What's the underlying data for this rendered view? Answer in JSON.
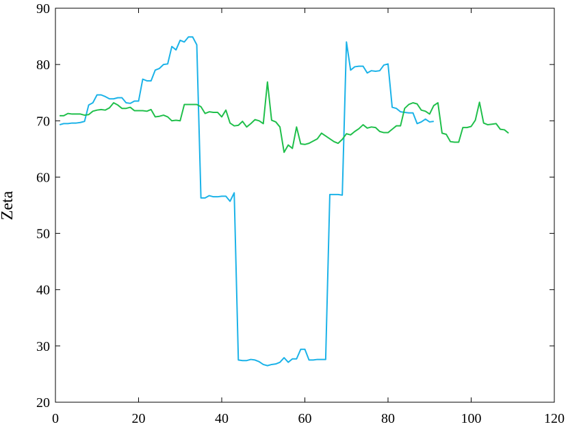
{
  "chart_data": {
    "type": "line",
    "y_label": "Zeta",
    "xlim": [
      0,
      120
    ],
    "xticks": [
      0,
      20,
      40,
      60,
      80,
      100,
      120
    ],
    "ylim": [
      20,
      90
    ],
    "yticks": [
      20,
      30,
      40,
      50,
      60,
      70,
      80,
      90
    ],
    "grid": false,
    "series": [
      {
        "color": "#1ab2e8",
        "x": [
          1,
          2,
          3,
          4,
          5,
          6,
          7,
          8,
          9,
          10,
          11,
          12,
          13,
          14,
          15,
          16,
          17,
          18,
          19,
          20,
          21,
          22,
          23,
          24,
          25,
          26,
          27,
          28,
          29,
          30,
          31,
          32,
          33,
          34,
          35,
          36,
          37,
          38,
          39,
          40,
          41,
          42,
          43,
          44,
          45,
          46,
          47,
          48,
          49,
          50,
          51,
          52,
          53,
          54,
          55,
          56,
          57,
          58,
          59,
          60,
          61,
          62,
          63,
          64,
          65,
          66,
          67,
          68,
          69,
          70,
          71,
          72,
          73,
          74,
          75,
          76,
          77,
          78,
          79,
          80,
          81,
          82,
          83,
          84,
          85,
          86,
          87,
          88,
          89,
          90,
          91
        ],
        "values": [
          69.3,
          69.5,
          69.5,
          69.6,
          69.6,
          69.7,
          69.9,
          72.8,
          73.2,
          74.6,
          74.6,
          74.3,
          73.9,
          73.9,
          74.1,
          74.1,
          73.2,
          73.1,
          73.5,
          73.5,
          77.4,
          77.1,
          77.1,
          79.0,
          79.3,
          80.0,
          80.1,
          83.2,
          82.6,
          84.3,
          84.0,
          84.9,
          84.9,
          83.5,
          56.3,
          56.3,
          56.7,
          56.5,
          56.5,
          56.6,
          56.6,
          55.7,
          57.2,
          27.5,
          27.4,
          27.4,
          27.6,
          27.5,
          27.2,
          26.7,
          26.5,
          26.7,
          26.8,
          27.1,
          27.9,
          27.1,
          27.7,
          27.7,
          29.4,
          29.4,
          27.5,
          27.5,
          27.6,
          27.6,
          27.6,
          56.9,
          56.9,
          56.9,
          56.8,
          84.0,
          79.0,
          79.6,
          79.7,
          79.7,
          78.5,
          78.9,
          78.8,
          78.9,
          79.9,
          80.1,
          72.4,
          72.2,
          71.6,
          71.5,
          71.4,
          71.4,
          69.5,
          69.8,
          70.3,
          69.8,
          69.9
        ]
      },
      {
        "color": "#1fbf4a",
        "x": [
          1,
          2,
          3,
          4,
          5,
          6,
          7,
          8,
          9,
          10,
          11,
          12,
          13,
          14,
          15,
          16,
          17,
          18,
          19,
          20,
          21,
          22,
          23,
          24,
          25,
          26,
          27,
          28,
          29,
          30,
          31,
          32,
          33,
          34,
          35,
          36,
          37,
          38,
          39,
          40,
          41,
          42,
          43,
          44,
          45,
          46,
          47,
          48,
          49,
          50,
          51,
          52,
          53,
          54,
          55,
          56,
          57,
          58,
          59,
          60,
          61,
          62,
          63,
          64,
          65,
          66,
          67,
          68,
          69,
          70,
          71,
          72,
          73,
          74,
          75,
          76,
          77,
          78,
          79,
          80,
          81,
          82,
          83,
          84,
          85,
          86,
          87,
          88,
          89,
          90,
          91,
          92,
          93,
          94,
          95,
          96,
          97,
          98,
          99,
          100,
          101,
          102,
          103,
          104,
          105,
          106,
          107,
          108,
          109
        ],
        "values": [
          70.9,
          70.9,
          71.3,
          71.2,
          71.2,
          71.2,
          71.0,
          71.1,
          71.7,
          71.9,
          72.0,
          71.9,
          72.3,
          73.2,
          72.8,
          72.2,
          72.2,
          72.4,
          71.8,
          71.8,
          71.8,
          71.7,
          72.0,
          70.7,
          70.8,
          71.0,
          70.7,
          70.0,
          70.1,
          70.0,
          72.9,
          72.9,
          72.9,
          72.9,
          72.5,
          71.3,
          71.6,
          71.5,
          71.5,
          70.7,
          71.9,
          69.6,
          69.1,
          69.2,
          69.9,
          68.9,
          69.5,
          70.2,
          70.0,
          69.5,
          76.9,
          70.1,
          69.8,
          68.9,
          64.4,
          65.7,
          65.1,
          68.9,
          65.9,
          65.8,
          66.0,
          66.4,
          66.8,
          67.8,
          67.3,
          66.8,
          66.3,
          66.0,
          66.7,
          67.7,
          67.5,
          68.1,
          68.6,
          69.3,
          68.7,
          68.9,
          68.8,
          68.1,
          67.9,
          67.9,
          68.5,
          69.1,
          69.1,
          72.2,
          72.9,
          73.2,
          73.0,
          71.9,
          71.7,
          71.2,
          72.7,
          73.2,
          67.8,
          67.6,
          66.3,
          66.2,
          66.2,
          68.8,
          68.8,
          69.0,
          70.1,
          73.3,
          69.6,
          69.3,
          69.4,
          69.5,
          68.5,
          68.4,
          67.8
        ]
      }
    ]
  }
}
